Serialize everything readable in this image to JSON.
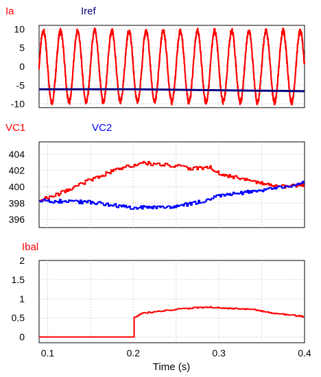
{
  "chart_data": [
    {
      "type": "line",
      "xlim": [
        0.09,
        0.4
      ],
      "ylim": [
        -11,
        11
      ],
      "yticks": [
        {
          "v": 10,
          "label": "10"
        },
        {
          "v": 5,
          "label": "5"
        },
        {
          "v": 0,
          "label": "0"
        },
        {
          "v": -5,
          "label": "-5"
        },
        {
          "v": -10,
          "label": "-10"
        }
      ],
      "grid": true,
      "legend_placement": "top-left",
      "series": [
        {
          "name": "Ia",
          "color": "#ff0000",
          "kind": "sine",
          "amplitude": 9.5,
          "offset": 0,
          "frequency_hz": 50
        },
        {
          "name": "Iref",
          "color": "#000080",
          "kind": "ramp",
          "points": [
            [
              0.09,
              -6.1
            ],
            [
              0.2,
              -6.1
            ],
            [
              0.4,
              -6.6
            ]
          ]
        }
      ]
    },
    {
      "type": "line",
      "xlim": [
        0.09,
        0.4
      ],
      "ylim": [
        395,
        405.5
      ],
      "yticks": [
        {
          "v": 404,
          "label": "404"
        },
        {
          "v": 402,
          "label": "402"
        },
        {
          "v": 400,
          "label": "400"
        },
        {
          "v": 398,
          "label": "398"
        },
        {
          "v": 396,
          "label": "396"
        }
      ],
      "grid": true,
      "legend_placement": "top-left",
      "series": [
        {
          "name": "VC1",
          "color": "#ff0000",
          "points": [
            [
              0.09,
              398.3
            ],
            [
              0.12,
              399.4
            ],
            [
              0.15,
              400.9
            ],
            [
              0.18,
              402.1
            ],
            [
              0.21,
              402.9
            ],
            [
              0.24,
              402.7
            ],
            [
              0.27,
              402.2
            ],
            [
              0.29,
              402.4
            ],
            [
              0.3,
              401.6
            ],
            [
              0.33,
              400.9
            ],
            [
              0.36,
              400.2
            ],
            [
              0.38,
              400.0
            ],
            [
              0.4,
              400.3
            ]
          ]
        },
        {
          "name": "VC2",
          "color": "#0000ff",
          "points": [
            [
              0.09,
              398.3
            ],
            [
              0.12,
              398.2
            ],
            [
              0.15,
              398.1
            ],
            [
              0.18,
              397.7
            ],
            [
              0.2,
              397.4
            ],
            [
              0.22,
              397.5
            ],
            [
              0.25,
              397.6
            ],
            [
              0.28,
              398.2
            ],
            [
              0.3,
              398.9
            ],
            [
              0.33,
              399.3
            ],
            [
              0.36,
              399.7
            ],
            [
              0.38,
              400.1
            ],
            [
              0.4,
              400.5
            ]
          ]
        }
      ]
    },
    {
      "type": "line",
      "xlim": [
        0.09,
        0.4
      ],
      "ylim": [
        -0.15,
        2.0
      ],
      "yticks": [
        {
          "v": 2,
          "label": "2"
        },
        {
          "v": 1.5,
          "label": "1.5"
        },
        {
          "v": 1,
          "label": "1"
        },
        {
          "v": 0.5,
          "label": "0.5"
        },
        {
          "v": 0,
          "label": "0"
        }
      ],
      "xticks": [
        {
          "v": 0.1,
          "label": "0.1"
        },
        {
          "v": 0.2,
          "label": "0.2"
        },
        {
          "v": 0.3,
          "label": "0.3"
        },
        {
          "v": 0.4,
          "label": "0.4"
        }
      ],
      "xlabel": "Time (s)",
      "grid": true,
      "legend_placement": "top-left",
      "series": [
        {
          "name": "Ibal",
          "color": "#ff0000",
          "points": [
            [
              0.09,
              0.0
            ],
            [
              0.2,
              0.0
            ],
            [
              0.2,
              0.5
            ],
            [
              0.21,
              0.62
            ],
            [
              0.24,
              0.7
            ],
            [
              0.27,
              0.76
            ],
            [
              0.29,
              0.78
            ],
            [
              0.31,
              0.75
            ],
            [
              0.34,
              0.72
            ],
            [
              0.36,
              0.63
            ],
            [
              0.38,
              0.58
            ],
            [
              0.4,
              0.53
            ]
          ]
        }
      ]
    }
  ]
}
